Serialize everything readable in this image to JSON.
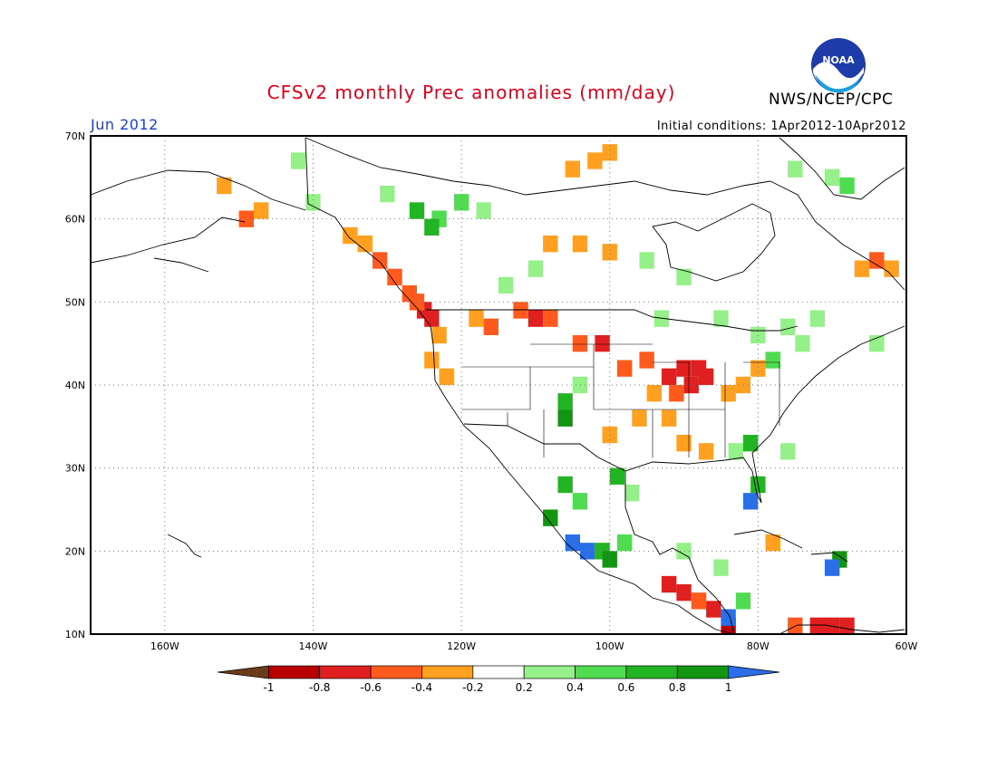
{
  "title": "CFSv2 monthly Prec anomalies (mm/day)",
  "agency": "NWS/NCEP/CPC",
  "logo": {
    "name": "noaa-logo",
    "text": "NOAA"
  },
  "forecast_month": "Jun 2012",
  "initial_conditions": "Initial conditions: 1Apr2012-10Apr2012",
  "map": {
    "lon_range": [
      -170,
      -60
    ],
    "lat_range": [
      10,
      70
    ],
    "lat_labels": [
      {
        "value": 70,
        "label": "70N"
      },
      {
        "value": 60,
        "label": "60N"
      },
      {
        "value": 50,
        "label": "50N"
      },
      {
        "value": 40,
        "label": "40N"
      },
      {
        "value": 30,
        "label": "30N"
      },
      {
        "value": 20,
        "label": "20N"
      },
      {
        "value": 10,
        "label": "10N"
      }
    ],
    "lon_labels": [
      {
        "value": -160,
        "label": "160W"
      },
      {
        "value": -140,
        "label": "140W"
      },
      {
        "value": -120,
        "label": "120W"
      },
      {
        "value": -100,
        "label": "100W"
      },
      {
        "value": -80,
        "label": "80W"
      },
      {
        "value": -60,
        "label": "60W"
      }
    ]
  },
  "colorbar": {
    "labels": [
      "-1",
      "-0.8",
      "-0.6",
      "-0.4",
      "-0.2",
      "0.2",
      "0.4",
      "0.6",
      "0.8",
      "1"
    ],
    "colors": [
      "#6b3a1a",
      "#b80000",
      "#e02020",
      "#ff5a1e",
      "#ffa020",
      "#ffffff",
      "#96f08a",
      "#50dc50",
      "#22b422",
      "#129612",
      "#2a6ee8"
    ]
  },
  "anomaly_cells": [
    {
      "lon": -125,
      "lat": 49,
      "level": 2
    },
    {
      "lon": -124,
      "lat": 48,
      "level": 2
    },
    {
      "lon": -126,
      "lat": 50,
      "level": 3
    },
    {
      "lon": -127,
      "lat": 51,
      "level": 3
    },
    {
      "lon": -129,
      "lat": 53,
      "level": 3
    },
    {
      "lon": -131,
      "lat": 55,
      "level": 3
    },
    {
      "lon": -133,
      "lat": 57,
      "level": 4
    },
    {
      "lon": -135,
      "lat": 58,
      "level": 4
    },
    {
      "lon": -123,
      "lat": 46,
      "level": 4
    },
    {
      "lon": -124,
      "lat": 43,
      "level": 4
    },
    {
      "lon": -122,
      "lat": 41,
      "level": 4
    },
    {
      "lon": -118,
      "lat": 48,
      "level": 4
    },
    {
      "lon": -116,
      "lat": 47,
      "level": 3
    },
    {
      "lon": -110,
      "lat": 48,
      "level": 2
    },
    {
      "lon": -108,
      "lat": 48,
      "level": 3
    },
    {
      "lon": -112,
      "lat": 49,
      "level": 3
    },
    {
      "lon": -104,
      "lat": 45,
      "level": 3
    },
    {
      "lon": -101,
      "lat": 45,
      "level": 2
    },
    {
      "lon": -98,
      "lat": 42,
      "level": 3
    },
    {
      "lon": -95,
      "lat": 43,
      "level": 3
    },
    {
      "lon": -92,
      "lat": 41,
      "level": 2
    },
    {
      "lon": -90,
      "lat": 42,
      "level": 2
    },
    {
      "lon": -88,
      "lat": 42,
      "level": 2
    },
    {
      "lon": -87,
      "lat": 41,
      "level": 2
    },
    {
      "lon": -89,
      "lat": 40,
      "level": 2
    },
    {
      "lon": -91,
      "lat": 39,
      "level": 3
    },
    {
      "lon": -94,
      "lat": 39,
      "level": 4
    },
    {
      "lon": -92,
      "lat": 36,
      "level": 4
    },
    {
      "lon": -90,
      "lat": 33,
      "level": 4
    },
    {
      "lon": -87,
      "lat": 32,
      "level": 4
    },
    {
      "lon": -84,
      "lat": 39,
      "level": 4
    },
    {
      "lon": -82,
      "lat": 40,
      "level": 4
    },
    {
      "lon": -80,
      "lat": 42,
      "level": 4
    },
    {
      "lon": -100,
      "lat": 34,
      "level": 4
    },
    {
      "lon": -96,
      "lat": 36,
      "level": 4
    },
    {
      "lon": -108,
      "lat": 57,
      "level": 4
    },
    {
      "lon": -104,
      "lat": 57,
      "level": 4
    },
    {
      "lon": -100,
      "lat": 56,
      "level": 4
    },
    {
      "lon": -105,
      "lat": 66,
      "level": 4
    },
    {
      "lon": -102,
      "lat": 67,
      "level": 4
    },
    {
      "lon": -100,
      "lat": 68,
      "level": 4
    },
    {
      "lon": -152,
      "lat": 64,
      "level": 4
    },
    {
      "lon": -149,
      "lat": 60,
      "level": 3
    },
    {
      "lon": -147,
      "lat": 61,
      "level": 4
    },
    {
      "lon": -64,
      "lat": 55,
      "level": 3
    },
    {
      "lon": -62,
      "lat": 54,
      "level": 4
    },
    {
      "lon": -66,
      "lat": 54,
      "level": 4
    },
    {
      "lon": -92,
      "lat": 16,
      "level": 2
    },
    {
      "lon": -90,
      "lat": 15,
      "level": 2
    },
    {
      "lon": -86,
      "lat": 13,
      "level": 2
    },
    {
      "lon": -84,
      "lat": 11,
      "level": 1
    },
    {
      "lon": -88,
      "lat": 14,
      "level": 3
    },
    {
      "lon": -72,
      "lat": 11,
      "level": 2
    },
    {
      "lon": -70,
      "lat": 11,
      "level": 2
    },
    {
      "lon": -68,
      "lat": 11,
      "level": 2
    },
    {
      "lon": -75,
      "lat": 11,
      "level": 3
    },
    {
      "lon": -78,
      "lat": 21,
      "level": 4
    },
    {
      "lon": -126,
      "lat": 61,
      "level": 8
    },
    {
      "lon": -123,
      "lat": 60,
      "level": 7
    },
    {
      "lon": -120,
      "lat": 62,
      "level": 7
    },
    {
      "lon": -124,
      "lat": 59,
      "level": 8
    },
    {
      "lon": -130,
      "lat": 63,
      "level": 6
    },
    {
      "lon": -117,
      "lat": 61,
      "level": 6
    },
    {
      "lon": -114,
      "lat": 52,
      "level": 6
    },
    {
      "lon": -110,
      "lat": 54,
      "level": 6
    },
    {
      "lon": -95,
      "lat": 55,
      "level": 6
    },
    {
      "lon": -90,
      "lat": 53,
      "level": 6
    },
    {
      "lon": -93,
      "lat": 48,
      "level": 6
    },
    {
      "lon": -85,
      "lat": 48,
      "level": 6
    },
    {
      "lon": -80,
      "lat": 46,
      "level": 6
    },
    {
      "lon": -76,
      "lat": 47,
      "level": 6
    },
    {
      "lon": -72,
      "lat": 48,
      "level": 6
    },
    {
      "lon": -78,
      "lat": 43,
      "level": 7
    },
    {
      "lon": -74,
      "lat": 45,
      "level": 6
    },
    {
      "lon": -68,
      "lat": 64,
      "level": 7
    },
    {
      "lon": -70,
      "lat": 65,
      "level": 6
    },
    {
      "lon": -75,
      "lat": 66,
      "level": 6
    },
    {
      "lon": -64,
      "lat": 45,
      "level": 6
    },
    {
      "lon": -140,
      "lat": 62,
      "level": 6
    },
    {
      "lon": -142,
      "lat": 67,
      "level": 6
    },
    {
      "lon": -106,
      "lat": 38,
      "level": 8
    },
    {
      "lon": -106,
      "lat": 36,
      "level": 9
    },
    {
      "lon": -104,
      "lat": 40,
      "level": 6
    },
    {
      "lon": -106,
      "lat": 28,
      "level": 8
    },
    {
      "lon": -104,
      "lat": 26,
      "level": 7
    },
    {
      "lon": -108,
      "lat": 24,
      "level": 9
    },
    {
      "lon": -105,
      "lat": 21,
      "level": 10
    },
    {
      "lon": -103,
      "lat": 20,
      "level": 10
    },
    {
      "lon": -101,
      "lat": 20,
      "level": 8
    },
    {
      "lon": -100,
      "lat": 19,
      "level": 9
    },
    {
      "lon": -98,
      "lat": 21,
      "level": 7
    },
    {
      "lon": -99,
      "lat": 29,
      "level": 8
    },
    {
      "lon": -97,
      "lat": 27,
      "level": 6
    },
    {
      "lon": -80,
      "lat": 28,
      "level": 8
    },
    {
      "lon": -81,
      "lat": 26,
      "level": 10
    },
    {
      "lon": -83,
      "lat": 32,
      "level": 6
    },
    {
      "lon": -81,
      "lat": 33,
      "level": 8
    },
    {
      "lon": -76,
      "lat": 32,
      "level": 6
    },
    {
      "lon": -69,
      "lat": 19,
      "level": 9
    },
    {
      "lon": -70,
      "lat": 18,
      "level": 10
    },
    {
      "lon": -84,
      "lat": 12,
      "level": 10
    },
    {
      "lon": -85,
      "lat": 18,
      "level": 6
    },
    {
      "lon": -90,
      "lat": 20,
      "level": 6
    },
    {
      "lon": -82,
      "lat": 14,
      "level": 7
    }
  ]
}
